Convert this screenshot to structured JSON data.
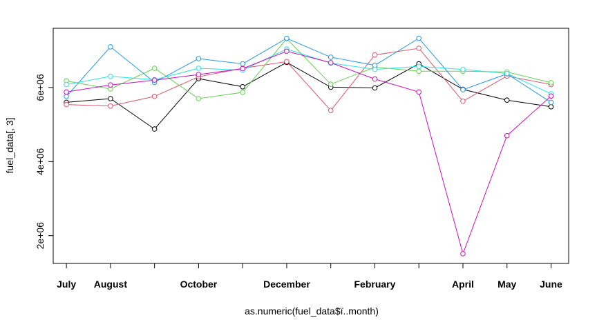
{
  "chart_data": {
    "type": "line",
    "title": "",
    "xlabel": "as.numeric(fuel_data$ï..month)",
    "ylabel": "fuel_data[, 3]",
    "x": [
      1,
      2,
      3,
      4,
      5,
      6,
      7,
      8,
      9,
      10,
      11,
      12
    ],
    "x_tick_labels": [
      "July",
      "August",
      "",
      "October",
      "",
      "December",
      "",
      "February",
      "",
      "April",
      "May",
      "June"
    ],
    "y_ticks": [
      2000000,
      4000000,
      6000000
    ],
    "y_tick_labels": [
      "2e+06",
      "4e+06",
      "6e+06"
    ],
    "ylim": [
      1250000,
      7600000
    ],
    "xlim": [
      0.7,
      12.4
    ],
    "grid": false,
    "legend": "none",
    "series": [
      {
        "color": "#000000",
        "values": [
          5600000,
          5700000,
          4880000,
          6240000,
          6020000,
          6680000,
          6010000,
          5990000,
          6640000,
          5950000,
          5660000,
          5480000
        ]
      },
      {
        "color": "#DF536B",
        "values": [
          5540000,
          5500000,
          5760000,
          6290000,
          6520000,
          6700000,
          5380000,
          6880000,
          7060000,
          5630000,
          6310000,
          6080000
        ]
      },
      {
        "color": "#61D04F",
        "values": [
          6180000,
          5960000,
          6520000,
          5700000,
          5870000,
          7320000,
          6090000,
          6550000,
          6440000,
          6440000,
          6420000,
          6130000
        ]
      },
      {
        "color": "#2297E6",
        "values": [
          5760000,
          7100000,
          6140000,
          6780000,
          6640000,
          7330000,
          6820000,
          6600000,
          7330000,
          5940000,
          6370000,
          5600000
        ]
      },
      {
        "color": "#28E2E5",
        "values": [
          6080000,
          6300000,
          6210000,
          6520000,
          6470000,
          7040000,
          6660000,
          6490000,
          6570000,
          6490000,
          6380000,
          5830000
        ]
      },
      {
        "color": "#CD0BBC",
        "values": [
          5880000,
          6070000,
          6200000,
          6350000,
          6510000,
          6980000,
          6670000,
          6230000,
          5880000,
          1510000,
          4700000,
          5770000
        ]
      }
    ]
  }
}
